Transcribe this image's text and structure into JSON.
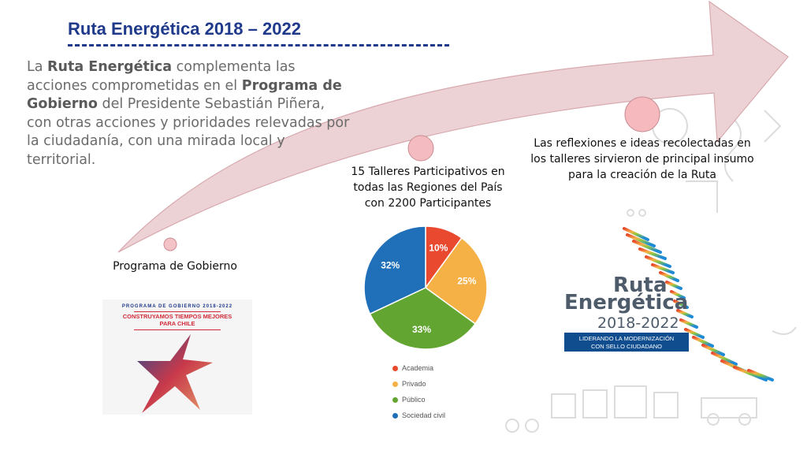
{
  "title": "Ruta Energética 2018 – 2022",
  "intro": {
    "t1": "La ",
    "b1": "Ruta Energética",
    "t2": " complementa las acciones comprometidas en el ",
    "b2": "Programa de Gobierno",
    "t3": " del Presidente Sebastián Piñera, con otras acciones y prioridades relevadas por la ciudadanía, con una mirada local y territorial."
  },
  "steps": [
    {
      "label": "Programa de Gobierno"
    },
    {
      "label": "15 Talleres Participativos en todas las Regiones del País con 2200 Participantes"
    },
    {
      "label": "Las reflexiones e ideas recolectadas en los talleres sirvieron de principal insumo para la creación de la Ruta"
    }
  ],
  "program_card": {
    "line1": "PROGRAMA DE GOBIERNO 2018-2022",
    "line2a": "CONSTRUYAMOS TIEMPOS MEJORES",
    "line2b": "PARA CHILE"
  },
  "chart_data": {
    "type": "pie",
    "title": "",
    "slices": [
      {
        "label": "Academia",
        "value": 10,
        "display": "10%",
        "color": "#e8492f"
      },
      {
        "label": "Privado",
        "value": 25,
        "display": "25%",
        "color": "#f6b146"
      },
      {
        "label": "Público",
        "value": 33,
        "display": "33%",
        "color": "#63a531"
      },
      {
        "label": "Sociedad civil",
        "value": 32,
        "display": "32%",
        "color": "#1f70b8"
      }
    ],
    "legend_position": "bottom"
  },
  "logo": {
    "line1": "Ruta",
    "line2": "Energética",
    "years": "2018-2022",
    "badge1": "LIDERANDO LA MODERNIZACIÓN",
    "badge2": "CON SELLO CIUDADANO"
  },
  "colors": {
    "title": "#1f3a8a",
    "arrow": "#e9c7ca",
    "dot": "#f3b7bc"
  }
}
